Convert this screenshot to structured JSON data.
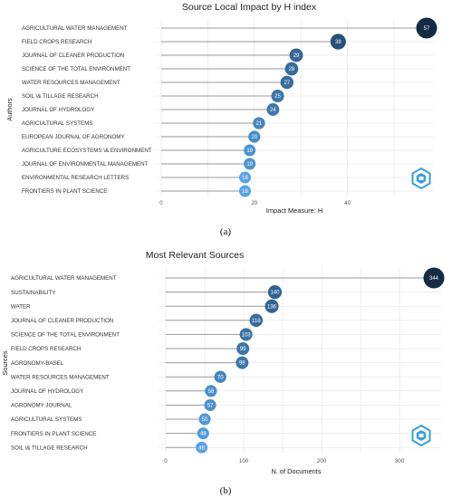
{
  "chart_data": [
    {
      "type": "lollipop",
      "title": "Source Local Impact by H index",
      "xlabel": "Impact Measure: H",
      "ylabel": "Authors",
      "panel_label": "(a)",
      "xlim": [
        0,
        57
      ],
      "xticks": [
        0,
        20,
        40
      ],
      "categories": [
        "AGRICULTURAL WATER MANAGEMENT",
        "FIELD CROPS RESEARCH",
        "JOURNAL OF CLEANER PRODUCTION",
        "SCIENCE OF THE TOTAL ENVIRONMENT",
        "WATER RESOURCES MANAGEMENT",
        "SOIL \\& TILLAGE RESEARCH",
        "JOURNAL OF HYDROLOGY",
        "AGRICULTURAL SYSTEMS",
        "EUROPEAN JOURNAL OF AGRONOMY",
        "AGRICULTURE ECOSYSTEMS \\& ENVIRONMENT",
        "JOURNAL OF ENVIRONMENTAL MANAGEMENT",
        "ENVIRONMENTAL RESEARCH LETTERS",
        "FRONTIERS IN PLANT SCIENCE"
      ],
      "values": [
        57,
        38,
        29,
        28,
        27,
        25,
        24,
        21,
        20,
        19,
        19,
        18,
        18
      ],
      "grid": true,
      "colors": {
        "low": "#56a4e8",
        "high": "#132b43"
      }
    },
    {
      "type": "lollipop",
      "title": "Most Relevant Sources",
      "xlabel": "N. of Documents",
      "ylabel": "Sources",
      "panel_label": "(b)",
      "xlim": [
        0,
        344
      ],
      "xticks": [
        0,
        100,
        200,
        300
      ],
      "categories": [
        "AGRICULTURAL WATER MANAGEMENT",
        "SUSTAINABILITY",
        "WATER",
        "JOURNAL OF CLEANER PRODUCTION",
        "SCIENCE OF THE TOTAL ENVIRONMENT",
        "FIELD CROPS RESEARCH",
        "AGRONOMY-BASEL",
        "WATER RESOURCES MANAGEMENT",
        "JOURNAL OF HYDROLOGY",
        "AGRONOMY JOURNAL",
        "AGRICULTURAL SYSTEMS",
        "FRONTIERS IN PLANT SCIENCE",
        "SOIL \\& TILLAGE RESEARCH"
      ],
      "values": [
        344,
        140,
        136,
        116,
        103,
        99,
        98,
        70,
        58,
        57,
        50,
        48,
        46
      ],
      "grid": true,
      "colors": {
        "low": "#56a4e8",
        "high": "#132b43"
      }
    }
  ],
  "icons": [
    "watermark-logo-icon"
  ]
}
